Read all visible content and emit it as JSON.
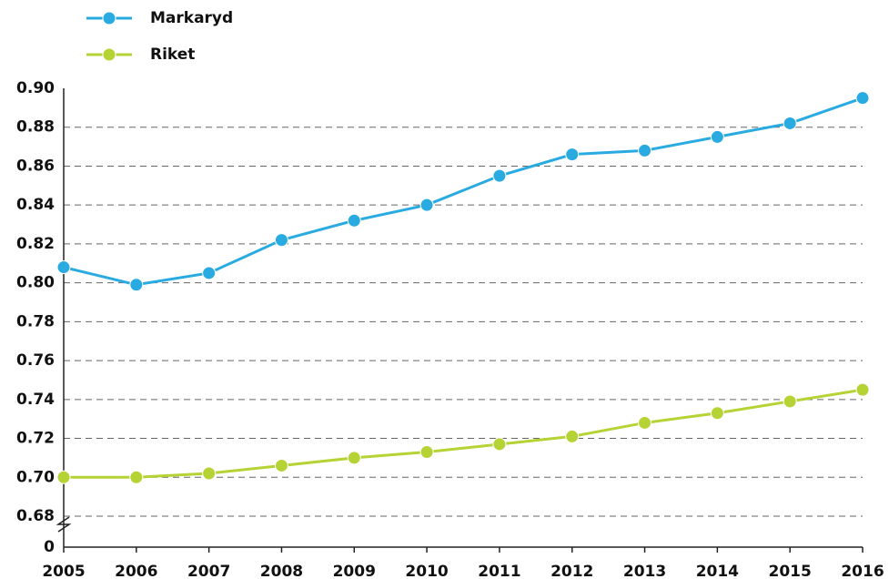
{
  "chart_data": {
    "type": "line",
    "x": [
      2005,
      2006,
      2007,
      2008,
      2009,
      2010,
      2011,
      2012,
      2013,
      2014,
      2015,
      2016
    ],
    "xlim": [
      2005,
      2016
    ],
    "xticks": [
      2005,
      2006,
      2007,
      2008,
      2009,
      2010,
      2011,
      2012,
      2013,
      2014,
      2015,
      2016
    ],
    "ylim": [
      0,
      0.9
    ],
    "axis_break": [
      0,
      0.68
    ],
    "yticks": [
      0,
      {
        "value": 0.68,
        "label": "0.68"
      },
      {
        "value": 0.7,
        "label": "0.70"
      },
      {
        "value": 0.72,
        "label": "0.72"
      },
      {
        "value": 0.74,
        "label": "0.74"
      },
      {
        "value": 0.76,
        "label": "0.76"
      },
      {
        "value": 0.78,
        "label": "0.78"
      },
      {
        "value": 0.8,
        "label": "0.80"
      },
      {
        "value": 0.82,
        "label": "0.82"
      },
      {
        "value": 0.84,
        "label": "0.84"
      },
      {
        "value": 0.86,
        "label": "0.86"
      },
      {
        "value": 0.88,
        "label": "0.88"
      },
      {
        "value": 0.9,
        "label": "0.90"
      }
    ],
    "grid": true,
    "legend": "top-left",
    "series": [
      {
        "name": "Markaryd",
        "color": "#29abe2",
        "values": [
          0.808,
          0.799,
          0.805,
          0.822,
          0.832,
          0.84,
          0.855,
          0.866,
          0.868,
          0.875,
          0.882,
          0.895
        ]
      },
      {
        "name": "Riket",
        "color": "#b5d334",
        "values": [
          0.7,
          0.7,
          0.702,
          0.706,
          0.71,
          0.713,
          0.717,
          0.721,
          0.728,
          0.733,
          0.739,
          0.745
        ]
      }
    ]
  }
}
